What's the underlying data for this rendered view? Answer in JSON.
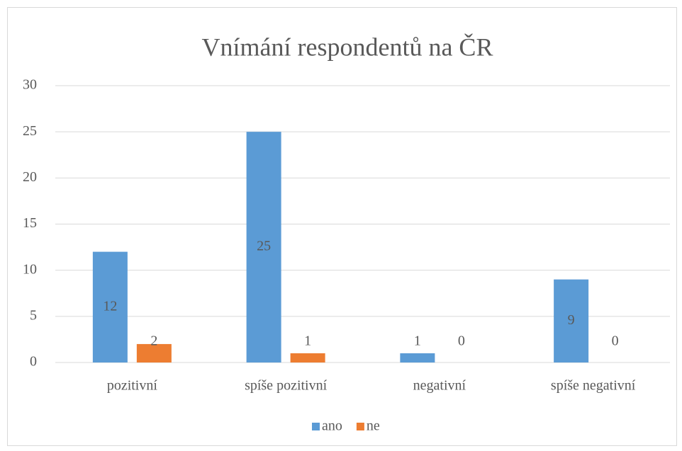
{
  "chart_data": {
    "type": "bar",
    "title": "Vnímání respondentů na ČR",
    "categories": [
      "pozitivní",
      "spíše pozitivní",
      "negativní",
      "spíše negativní"
    ],
    "series": [
      {
        "name": "ano",
        "color": "#5b9bd5",
        "values": [
          12,
          25,
          1,
          9
        ]
      },
      {
        "name": "ne",
        "color": "#ed7d31",
        "values": [
          2,
          1,
          0,
          0
        ]
      }
    ],
    "ylim": [
      0,
      30
    ],
    "yticks": [
      0,
      5,
      10,
      15,
      20,
      25,
      30
    ],
    "grid": true,
    "legend": "bottom"
  }
}
